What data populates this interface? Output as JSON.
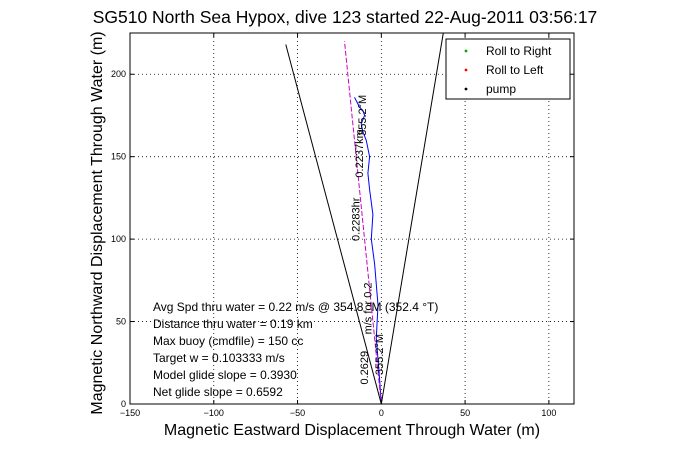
{
  "chart_data": {
    "type": "line",
    "title": "SG510 North Sea Hypox, dive 123 started 22-Aug-2011 03:56:17",
    "xlabel": "Magnetic Eastward Displacement Through Water (m)",
    "ylabel": "Magnetic Northward Displacement Through Water (m)",
    "xlim": [
      -150,
      115
    ],
    "ylim": [
      0,
      225
    ],
    "xticks": [
      -150,
      -100,
      -50,
      0,
      50,
      100
    ],
    "yticks": [
      0,
      50,
      100,
      150,
      200
    ],
    "grid": true,
    "legend_position": "top-right",
    "legend": [
      {
        "label": "Roll to Right",
        "marker": "dot",
        "color": "#00aa00"
      },
      {
        "label": "Roll to Left",
        "marker": "dot",
        "color": "#ff0000"
      },
      {
        "label": "pump",
        "marker": "dot",
        "color": "#000000"
      }
    ],
    "series": [
      {
        "id": "track",
        "color": "#0000ff",
        "x": [
          0,
          -1,
          -3,
          -2,
          -4,
          -6,
          -5,
          -7,
          -8,
          -7,
          -9,
          -11,
          -12,
          -10,
          -11,
          -13,
          -14,
          -15,
          -16
        ],
        "y": [
          0,
          15,
          40,
          60,
          85,
          100,
          115,
          130,
          140,
          150,
          160,
          165,
          170,
          175,
          178,
          180,
          182,
          184,
          186
        ]
      },
      {
        "id": "heading-line",
        "color": "#cc00cc",
        "x": [
          0,
          -4,
          -8,
          -12,
          -16,
          -20,
          -22
        ],
        "y": [
          0,
          40,
          80,
          120,
          160,
          200,
          220
        ]
      },
      {
        "id": "cone-left",
        "color": "#000000",
        "x": [
          0,
          -57
        ],
        "y": [
          0,
          218
        ]
      },
      {
        "id": "cone-right",
        "color": "#000000",
        "x": [
          0,
          37
        ],
        "y": [
          0,
          225
        ]
      }
    ],
    "annotations": {
      "stats": [
        "Avg Spd thru water =  0.22 m/s @ 354.8   °M (352.4 °T)",
        "Distance thru water =  0.19 km",
        "Max buoy (cmdfile) = 150 cc",
        "Target w = 0.103333 m/s",
        "Model glide slope = 0.3930",
        "Net glide slope = 0.6592"
      ],
      "rotated_labels": [
        {
          "id": "leg-upper-heading",
          "text": "355.2°M",
          "x": -9,
          "y": 175
        },
        {
          "id": "leg-upper-distance",
          "text": "0.2237km",
          "x": -11,
          "y": 152
        },
        {
          "id": "leg-upper-time",
          "text": "0.2283hr",
          "x": -13,
          "y": 112
        },
        {
          "id": "leg-lower-speed",
          "text": "m/s for 0.2",
          "x": -6,
          "y": 58
        },
        {
          "id": "leg-lower-value",
          "text": "0.2629",
          "x": -8,
          "y": 22
        },
        {
          "id": "leg-lower-heading",
          "text": "355.2°M",
          "x": 1,
          "y": 30
        }
      ]
    }
  }
}
